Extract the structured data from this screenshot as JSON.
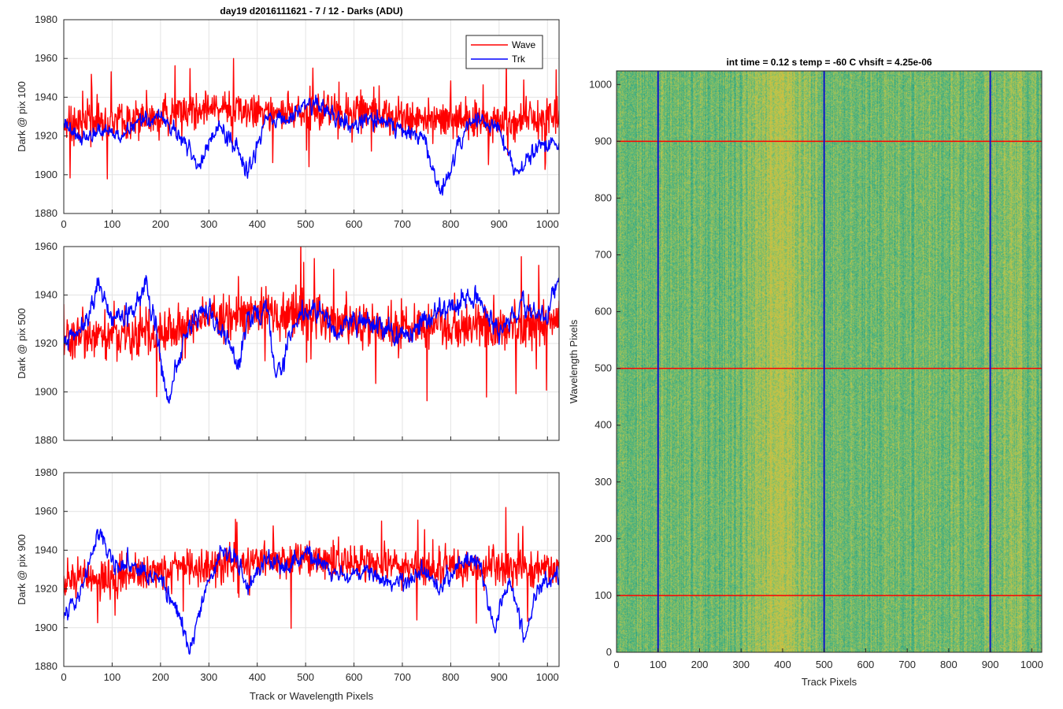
{
  "colors": {
    "wave": "#ff0000",
    "trk": "#0000ff",
    "grid": "#e3e3e3",
    "axis": "#262626"
  },
  "chart_data": [
    {
      "type": "line",
      "title": "day19 d2016111621 - 7 / 12 - Darks (ADU)",
      "xlabel": "",
      "ylabel": "Dark @ pix 100",
      "xlim": [
        0,
        1024
      ],
      "ylim": [
        1880,
        1980
      ],
      "xticks": [
        "0",
        "100",
        "200",
        "300",
        "400",
        "500",
        "600",
        "700",
        "800",
        "900",
        "1000"
      ],
      "yticks": [
        "1880",
        "1900",
        "1920",
        "1940",
        "1960",
        "1980"
      ],
      "grid": true,
      "legend": {
        "position": "top-right",
        "entries": [
          "Wave",
          "Trk"
        ]
      },
      "series": [
        {
          "name": "Wave",
          "color": "#ff0000",
          "mean": 1930,
          "noise": 9,
          "anchors": [
            [
              0,
              1926
            ],
            [
              100,
              1928
            ],
            [
              200,
              1929
            ],
            [
              300,
              1934
            ],
            [
              400,
              1933
            ],
            [
              500,
              1932
            ],
            [
              600,
              1933
            ],
            [
              700,
              1930
            ],
            [
              800,
              1929
            ],
            [
              900,
              1927
            ],
            [
              1024,
              1930
            ]
          ]
        },
        {
          "name": "Trk",
          "color": "#0000ff",
          "mean": 1922,
          "noise": 4,
          "anchors": [
            [
              0,
              1925
            ],
            [
              40,
              1918
            ],
            [
              80,
              1922
            ],
            [
              120,
              1920
            ],
            [
              160,
              1928
            ],
            [
              200,
              1930
            ],
            [
              240,
              1920
            ],
            [
              280,
              1905
            ],
            [
              320,
              1925
            ],
            [
              360,
              1912
            ],
            [
              380,
              1900
            ],
            [
              420,
              1928
            ],
            [
              470,
              1930
            ],
            [
              520,
              1938
            ],
            [
              560,
              1930
            ],
            [
              600,
              1925
            ],
            [
              650,
              1930
            ],
            [
              700,
              1922
            ],
            [
              740,
              1920
            ],
            [
              780,
              1890
            ],
            [
              820,
              1918
            ],
            [
              850,
              1930
            ],
            [
              900,
              1922
            ],
            [
              940,
              1900
            ],
            [
              980,
              1915
            ],
            [
              1024,
              1918
            ]
          ]
        }
      ]
    },
    {
      "type": "line",
      "title": "",
      "xlabel": "",
      "ylabel": "Dark @ pix 500",
      "xlim": [
        0,
        1024
      ],
      "ylim": [
        1880,
        1960
      ],
      "xticks": [
        "",
        "",
        "",
        "",
        "",
        "",
        "",
        "",
        "",
        "",
        ""
      ],
      "yticks": [
        "1880",
        "1900",
        "1920",
        "1940",
        "1960"
      ],
      "grid": true,
      "series": [
        {
          "name": "Wave",
          "color": "#ff0000",
          "mean": 1926,
          "noise": 9,
          "anchors": [
            [
              0,
              1922
            ],
            [
              100,
              1924
            ],
            [
              200,
              1924
            ],
            [
              300,
              1930
            ],
            [
              400,
              1932
            ],
            [
              500,
              1932
            ],
            [
              600,
              1928
            ],
            [
              700,
              1927
            ],
            [
              800,
              1928
            ],
            [
              900,
              1926
            ],
            [
              1024,
              1928
            ]
          ]
        },
        {
          "name": "Trk",
          "color": "#0000ff",
          "mean": 1926,
          "noise": 4,
          "anchors": [
            [
              0,
              1920
            ],
            [
              40,
              1925
            ],
            [
              70,
              1945
            ],
            [
              100,
              1930
            ],
            [
              150,
              1935
            ],
            [
              170,
              1945
            ],
            [
              200,
              1915
            ],
            [
              215,
              1895
            ],
            [
              250,
              1925
            ],
            [
              300,
              1935
            ],
            [
              330,
              1925
            ],
            [
              360,
              1910
            ],
            [
              380,
              1930
            ],
            [
              420,
              1935
            ],
            [
              440,
              1905
            ],
            [
              480,
              1930
            ],
            [
              520,
              1935
            ],
            [
              560,
              1925
            ],
            [
              600,
              1930
            ],
            [
              650,
              1928
            ],
            [
              700,
              1922
            ],
            [
              750,
              1930
            ],
            [
              800,
              1935
            ],
            [
              850,
              1940
            ],
            [
              900,
              1925
            ],
            [
              950,
              1935
            ],
            [
              1000,
              1930
            ],
            [
              1024,
              1950
            ]
          ]
        }
      ]
    },
    {
      "type": "line",
      "title": "",
      "xlabel": "Track or Wavelength Pixels",
      "ylabel": "Dark @ pix 900",
      "xlim": [
        0,
        1024
      ],
      "ylim": [
        1880,
        1980
      ],
      "xticks": [
        "0",
        "100",
        "200",
        "300",
        "400",
        "500",
        "600",
        "700",
        "800",
        "900",
        "1000"
      ],
      "yticks": [
        "1880",
        "1900",
        "1920",
        "1940",
        "1960",
        "1980"
      ],
      "grid": true,
      "series": [
        {
          "name": "Wave",
          "color": "#ff0000",
          "mean": 1930,
          "noise": 9,
          "anchors": [
            [
              0,
              1925
            ],
            [
              100,
              1926
            ],
            [
              200,
              1928
            ],
            [
              300,
              1932
            ],
            [
              400,
              1934
            ],
            [
              500,
              1935
            ],
            [
              600,
              1934
            ],
            [
              700,
              1930
            ],
            [
              800,
              1932
            ],
            [
              900,
              1930
            ],
            [
              1024,
              1932
            ]
          ]
        },
        {
          "name": "Trk",
          "color": "#0000ff",
          "mean": 1925,
          "noise": 4,
          "anchors": [
            [
              0,
              1905
            ],
            [
              40,
              1920
            ],
            [
              70,
              1950
            ],
            [
              100,
              1935
            ],
            [
              150,
              1930
            ],
            [
              200,
              1925
            ],
            [
              230,
              1910
            ],
            [
              260,
              1890
            ],
            [
              300,
              1925
            ],
            [
              330,
              1940
            ],
            [
              360,
              1935
            ],
            [
              380,
              1920
            ],
            [
              420,
              1935
            ],
            [
              460,
              1930
            ],
            [
              500,
              1940
            ],
            [
              540,
              1932
            ],
            [
              580,
              1925
            ],
            [
              620,
              1930
            ],
            [
              660,
              1925
            ],
            [
              700,
              1920
            ],
            [
              740,
              1930
            ],
            [
              780,
              1920
            ],
            [
              820,
              1935
            ],
            [
              860,
              1935
            ],
            [
              890,
              1900
            ],
            [
              920,
              1925
            ],
            [
              950,
              1895
            ],
            [
              980,
              1920
            ],
            [
              1024,
              1930
            ]
          ]
        }
      ]
    },
    {
      "type": "heatmap",
      "title": "int time = 0.12 s    temp = -60 C    vhsift = 4.25e-06",
      "xlabel": "Track Pixels",
      "ylabel": "Wavelength Pixels",
      "xlim": [
        0,
        1024
      ],
      "ylim": [
        0,
        1024
      ],
      "xticks": [
        "0",
        "100",
        "200",
        "300",
        "400",
        "500",
        "600",
        "700",
        "800",
        "900",
        "1000"
      ],
      "yticks": [
        "0",
        "100",
        "200",
        "300",
        "400",
        "500",
        "600",
        "700",
        "800",
        "900",
        "1000"
      ],
      "colormap": [
        "#1f9e89",
        "#5cb87a",
        "#bfc64a",
        "#d9b83a"
      ],
      "bright_columns": [
        [
          280,
          500,
          0.85
        ],
        [
          870,
          1024,
          0.35
        ]
      ],
      "blue_vertical_lines_at_x": [
        100,
        500,
        900
      ],
      "red_horizontal_lines_at_y": [
        100,
        500,
        900
      ],
      "series": []
    }
  ]
}
